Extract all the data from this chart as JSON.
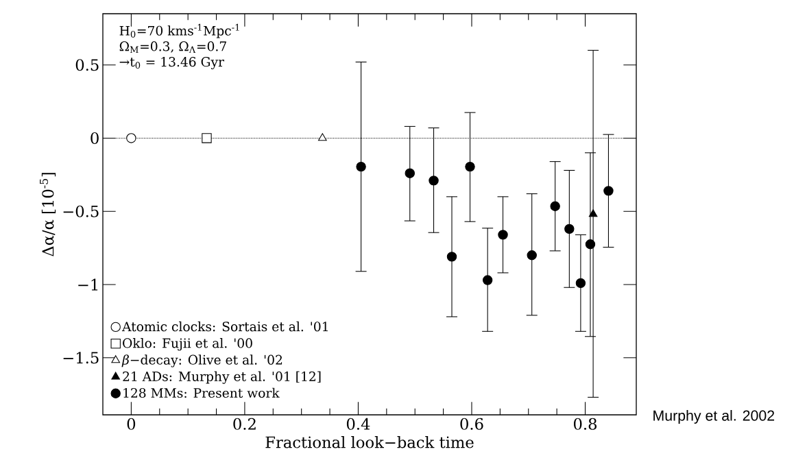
{
  "chart_data": {
    "type": "scatter",
    "xlabel": "Fractional look−back time",
    "ylabel": "Δα/α [10$^{-5}$]",
    "xlim": [
      -0.05,
      0.89
    ],
    "ylim": [
      -1.89,
      0.85
    ],
    "xticks": [
      0,
      0.2,
      0.4,
      0.6,
      0.8
    ],
    "yticks": [
      {
        "value": -1.5,
        "label": "−1.5"
      },
      {
        "value": -1,
        "label": "−1"
      },
      {
        "value": -0.5,
        "label": "−0.5"
      },
      0,
      0.5
    ],
    "legend": "bottom left",
    "ref_lines": [
      {
        "axis": "y",
        "value": 0,
        "line_style": "dotted",
        "color": "#000000"
      }
    ],
    "annotations": [
      "H$_{0}$=70 kms$^{-1}$Mpc$^{-1}$",
      "Ω$_{M}$=0.3, Ω$_{Λ}$=0.7",
      "→t$_{0}$ = 13.46 Gyr",
      {
        "text": "Murphy et al. 2002"
      }
    ],
    "series": [
      {
        "name": "Atomic clocks: Sortais et al. '01",
        "color": "#000000",
        "marker": "circle",
        "x": [
          0
        ],
        "values": [
          0
        ]
      },
      {
        "name": "Oklo: Fujii et al. '00",
        "color": "#000000",
        "marker": "square",
        "x": [
          0.133
        ],
        "values": [
          0
        ]
      },
      {
        "name": "*β*−decay: Olive et al. '02",
        "color": "#000000",
        "marker": "triangle",
        "x": [
          0.337
        ],
        "values": [
          0
        ]
      },
      {
        "name": "21 ADs: Murphy et al. '01 [12]",
        "color": "#000000",
        "marker": "triangle",
        "x": [
          0.814
        ],
        "values": [
          -0.52
        ],
        "errors": [
          [
            -1.77,
            0.6
          ]
        ]
      },
      {
        "name": "128 MMs: Present work",
        "color": "#000000",
        "marker": "circle",
        "x": [
          0.405,
          0.491,
          0.533,
          0.565,
          0.597,
          0.628,
          0.655,
          0.706,
          0.747,
          0.772,
          0.792,
          0.809,
          0.841
        ],
        "values": [
          -0.195,
          -0.24,
          -0.29,
          -0.81,
          -0.195,
          -0.97,
          -0.66,
          -0.8,
          -0.465,
          -0.62,
          -0.99,
          -0.725,
          -0.36
        ],
        "errors": [
          [
            -0.91,
            0.52
          ],
          [
            -0.565,
            0.08
          ],
          [
            -0.645,
            0.07
          ],
          [
            -1.22,
            -0.4
          ],
          [
            -0.57,
            0.175
          ],
          [
            -1.32,
            -0.615
          ],
          [
            -0.92,
            -0.4
          ],
          [
            -1.21,
            -0.38
          ],
          [
            -0.77,
            -0.16
          ],
          [
            -1.02,
            -0.22
          ],
          [
            -1.32,
            -0.66
          ],
          [
            -1.355,
            -0.1
          ],
          [
            -0.745,
            0.025
          ]
        ]
      }
    ]
  }
}
